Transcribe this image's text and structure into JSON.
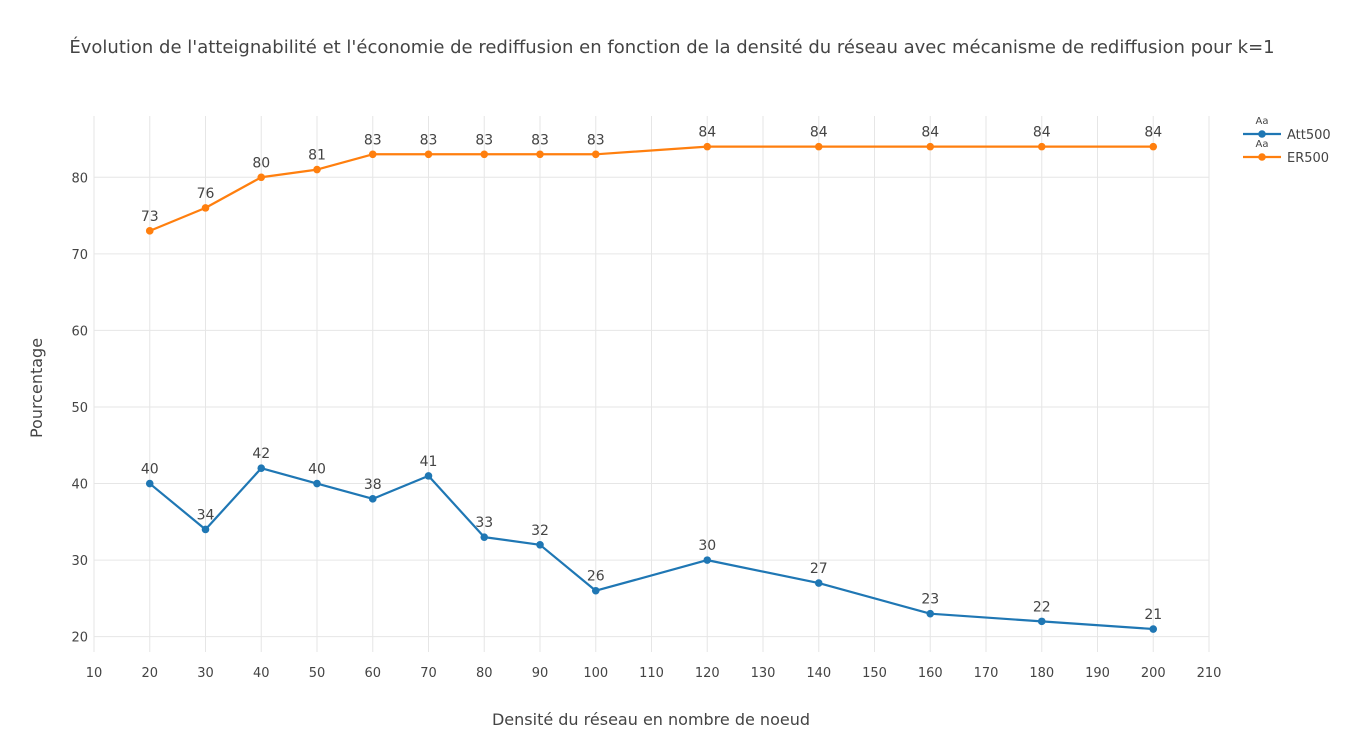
{
  "chart_data": {
    "type": "line",
    "title": "Évolution de l'atteignabilité et l'économie de rediffusion en fonction de la densité du réseau avec mécanisme de rediffusion pour k=1",
    "xlabel": "Densité du réseau en nombre de noeud",
    "ylabel": "Pourcentage",
    "xlim": [
      10,
      210
    ],
    "ylim": [
      18,
      88
    ],
    "x_ticks": [
      "10",
      "20",
      "30",
      "40",
      "50",
      "60",
      "70",
      "80",
      "90",
      "100",
      "110",
      "120",
      "130",
      "140",
      "150",
      "160",
      "170",
      "180",
      "190",
      "200",
      "210"
    ],
    "y_ticks": [
      "20",
      "30",
      "40",
      "50",
      "60",
      "70",
      "80"
    ],
    "x": [
      20,
      30,
      40,
      50,
      60,
      70,
      80,
      90,
      100,
      120,
      140,
      160,
      180,
      200
    ],
    "grid": true,
    "legend_position": "top-right",
    "legend_symbol_text": "Aa",
    "series": [
      {
        "name": "Att500",
        "color": "#1f77b4",
        "values": [
          40,
          34,
          42,
          40,
          38,
          41,
          33,
          32,
          26,
          30,
          27,
          23,
          22,
          21
        ]
      },
      {
        "name": "ER500",
        "color": "#ff7f0e",
        "values": [
          73,
          76,
          80,
          81,
          83,
          83,
          83,
          83,
          83,
          84,
          84,
          84,
          84,
          84
        ]
      }
    ]
  }
}
